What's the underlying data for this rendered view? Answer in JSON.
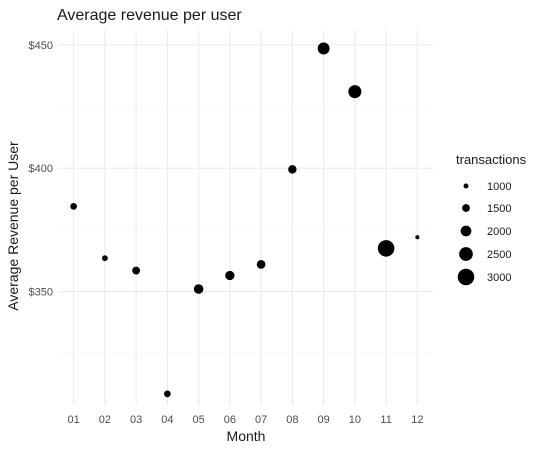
{
  "chart_data": {
    "type": "scatter",
    "title": "Average revenue per user",
    "xlabel": "Month",
    "ylabel": "Average Revenue per User",
    "categories": [
      "01",
      "02",
      "03",
      "04",
      "05",
      "06",
      "07",
      "08",
      "09",
      "10",
      "11",
      "12"
    ],
    "y_ticks": [
      350,
      400,
      450
    ],
    "y_tick_labels": [
      "$350",
      "$400",
      "$450"
    ],
    "ylim": [
      304,
      456
    ],
    "grid": true,
    "points": [
      {
        "x": "01",
        "y": 384.5,
        "transactions": 1300
      },
      {
        "x": "02",
        "y": 363.5,
        "transactions": 1150
      },
      {
        "x": "03",
        "y": 358.5,
        "transactions": 1500
      },
      {
        "x": "04",
        "y": 308.5,
        "transactions": 1300
      },
      {
        "x": "05",
        "y": 351,
        "transactions": 1800
      },
      {
        "x": "06",
        "y": 356.5,
        "transactions": 1750
      },
      {
        "x": "07",
        "y": 361,
        "transactions": 1650
      },
      {
        "x": "08",
        "y": 399.5,
        "transactions": 1600
      },
      {
        "x": "09",
        "y": 448.5,
        "transactions": 2200
      },
      {
        "x": "10",
        "y": 431,
        "transactions": 2400
      },
      {
        "x": "11",
        "y": 367.5,
        "transactions": 3000
      },
      {
        "x": "12",
        "y": 372,
        "transactions": 850
      }
    ],
    "size_legend": {
      "title": "transactions",
      "placement": "right",
      "entries": [
        {
          "label": "1000",
          "value": 1000
        },
        {
          "label": "1500",
          "value": 1500
        },
        {
          "label": "2000",
          "value": 2000
        },
        {
          "label": "2500",
          "value": 2500
        },
        {
          "label": "3000",
          "value": 3000
        }
      ]
    },
    "colors": {
      "point": "#000000",
      "grid": "#ebebeb",
      "text": "#1a1a1a",
      "tick": "#4d4d4d"
    }
  }
}
